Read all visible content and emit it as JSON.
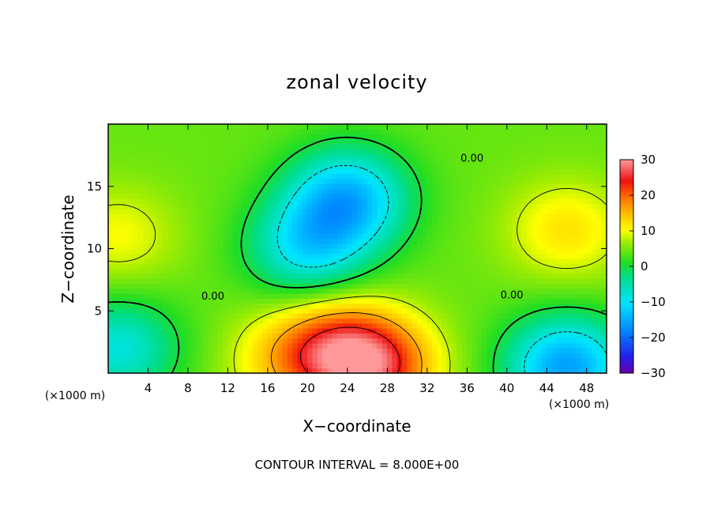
{
  "chart_data": {
    "type": "heatmap",
    "title": "zonal velocity",
    "xlabel": "X−coordinate",
    "ylabel": "Z−coordinate",
    "x_unit_left": "(×1000 m)",
    "x_unit_right": "(×1000 m)",
    "xlim": [
      0,
      50
    ],
    "ylim": [
      0,
      20
    ],
    "xticks": [
      4,
      8,
      12,
      16,
      20,
      24,
      28,
      32,
      36,
      40,
      44,
      48
    ],
    "yticks": [
      5,
      10,
      15
    ],
    "colorbar": {
      "min": -30,
      "max": 30,
      "ticks": [
        30,
        20,
        10,
        0,
        -10,
        -20,
        -30
      ],
      "tick_labels": [
        "30",
        "20",
        "10",
        "0",
        "−10",
        "−20",
        "−30"
      ]
    },
    "contour_levels": [
      -8,
      0,
      8,
      16,
      24
    ],
    "contour_labels": [
      "0.00",
      "0.00",
      "0.00"
    ],
    "contour_note": "CONTOUR INTERVAL = 8.000E+00",
    "features": [
      {
        "x": 24,
        "z": 14,
        "value": -14
      },
      {
        "x": 20,
        "z": 10,
        "value": -9
      },
      {
        "x": 27,
        "z": 0.5,
        "value": 22
      },
      {
        "x": 23,
        "z": 2,
        "value": 18
      },
      {
        "x": 18,
        "z": 1,
        "value": 12
      },
      {
        "x": 46,
        "z": 11.5,
        "value": 12
      },
      {
        "x": 1,
        "z": 11,
        "value": 10
      },
      {
        "x": 46,
        "z": 0.5,
        "value": -16
      },
      {
        "x": 1,
        "z": 2,
        "value": -8
      }
    ]
  }
}
